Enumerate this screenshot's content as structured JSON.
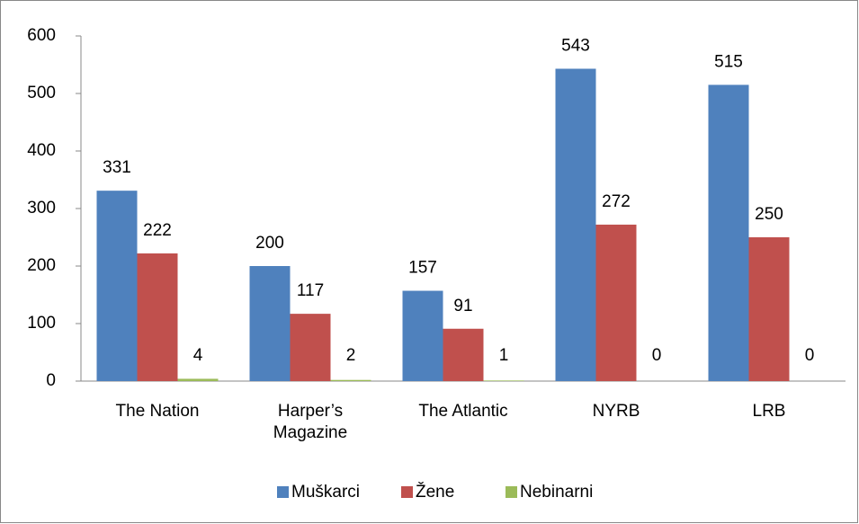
{
  "chart_data": {
    "type": "bar",
    "categories": [
      "The Nation",
      "Harper’s Magazine",
      "The Atlantic",
      "NYRB",
      "LRB"
    ],
    "series": [
      {
        "name": "Muškarci",
        "color": "#4f81bd",
        "values": [
          331,
          200,
          157,
          543,
          515
        ]
      },
      {
        "name": "Žene",
        "color": "#c0504d",
        "values": [
          222,
          117,
          91,
          272,
          250
        ]
      },
      {
        "name": "Nebinarni",
        "color": "#9bbb59",
        "values": [
          4,
          2,
          1,
          0,
          0
        ]
      }
    ],
    "ylim": [
      0,
      600
    ],
    "yticks": [
      0,
      100,
      200,
      300,
      400,
      500,
      600
    ],
    "legend": "bottom"
  }
}
